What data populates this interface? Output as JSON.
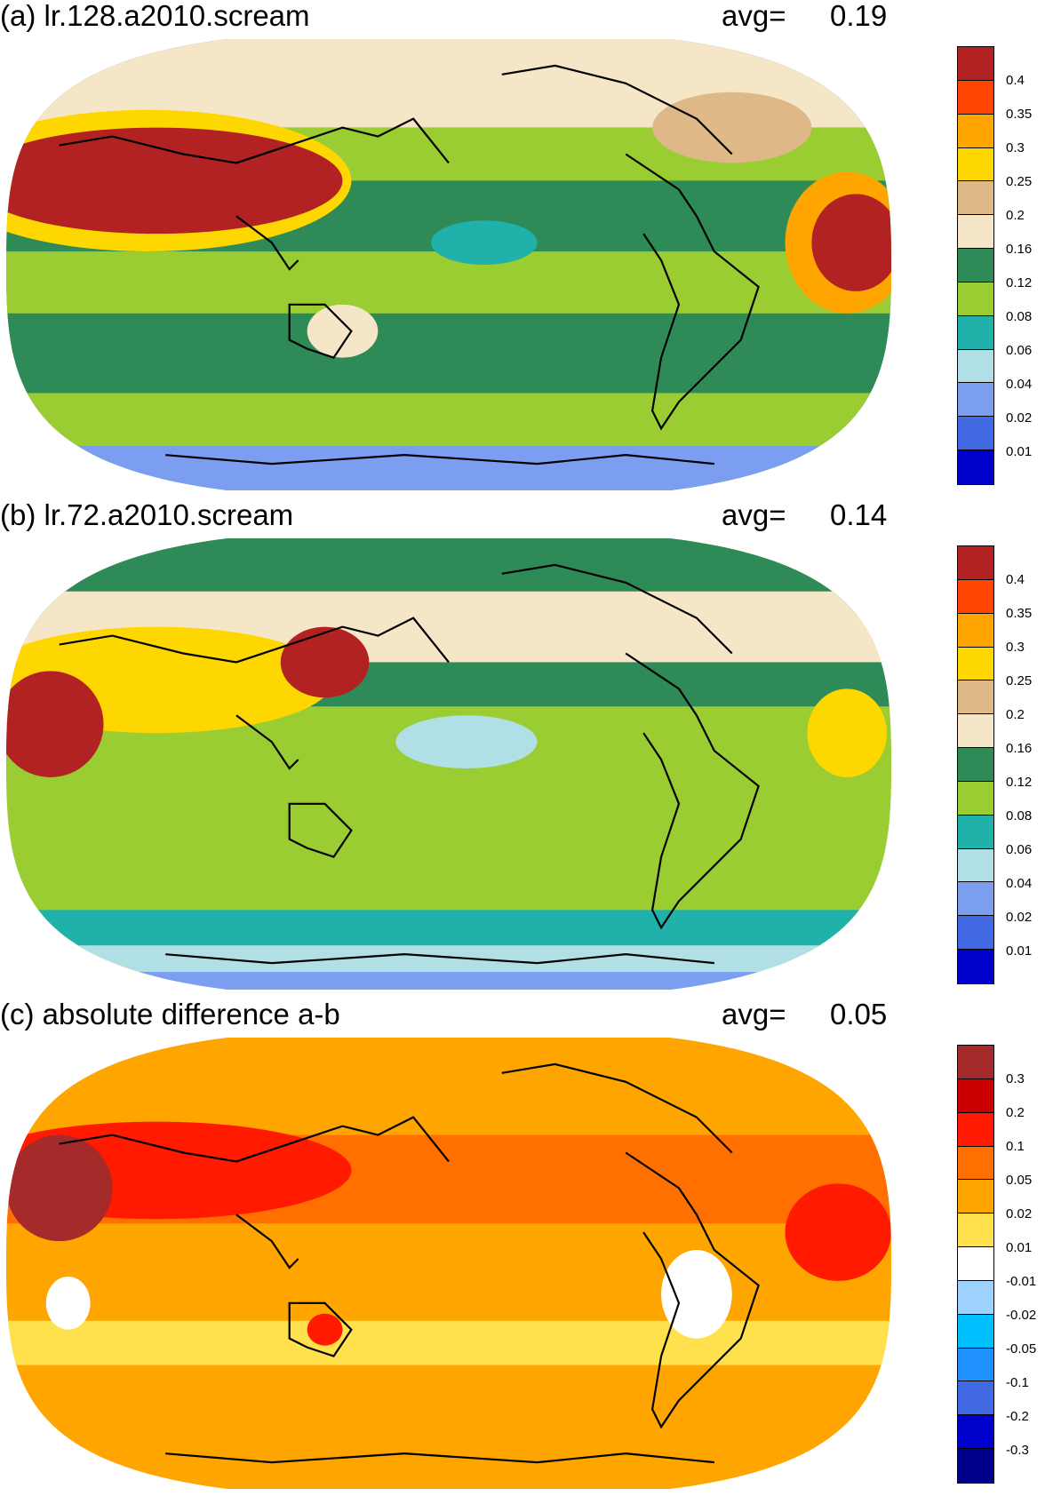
{
  "panels": [
    {
      "id": "a",
      "title": "(a) lr.128.a2010.scream",
      "avg_label": "avg=",
      "avg_value": "0.19",
      "colorbar": {
        "labels": [
          "0.4",
          "0.35",
          "0.3",
          "0.25",
          "0.2",
          "0.16",
          "0.12",
          "0.08",
          "0.06",
          "0.04",
          "0.02",
          "0.01"
        ],
        "colors": [
          "#b22222",
          "#ff4500",
          "#ffa500",
          "#ffd700",
          "#deb887",
          "#f5e6c8",
          "#2e8b57",
          "#9acd32",
          "#20b2aa",
          "#b0e0e6",
          "#7b9ef0",
          "#4169e1",
          "#0000cd"
        ]
      }
    },
    {
      "id": "b",
      "title": "(b) lr.72.a2010.scream",
      "avg_label": "avg=",
      "avg_value": "0.14",
      "colorbar": {
        "labels": [
          "0.4",
          "0.35",
          "0.3",
          "0.25",
          "0.2",
          "0.16",
          "0.12",
          "0.08",
          "0.06",
          "0.04",
          "0.02",
          "0.01"
        ],
        "colors": [
          "#b22222",
          "#ff4500",
          "#ffa500",
          "#ffd700",
          "#deb887",
          "#f5e6c8",
          "#2e8b57",
          "#9acd32",
          "#20b2aa",
          "#b0e0e6",
          "#7b9ef0",
          "#4169e1",
          "#0000cd"
        ]
      }
    },
    {
      "id": "c",
      "title": "(c) absolute difference a-b",
      "avg_label": "avg=",
      "avg_value": "0.05",
      "colorbar": {
        "labels": [
          "0.3",
          "0.2",
          "0.1",
          "0.05",
          "0.02",
          "0.01",
          "-0.01",
          "-0.02",
          "-0.05",
          "-0.1",
          "-0.2",
          "-0.3"
        ],
        "colors": [
          "#a52a2a",
          "#cc0000",
          "#ff1a00",
          "#ff7000",
          "#ffa500",
          "#ffe14d",
          "#ffffff",
          "#9fd3ff",
          "#00bfff",
          "#1e90ff",
          "#4169e1",
          "#0000cd",
          "#00008b"
        ]
      }
    }
  ]
}
